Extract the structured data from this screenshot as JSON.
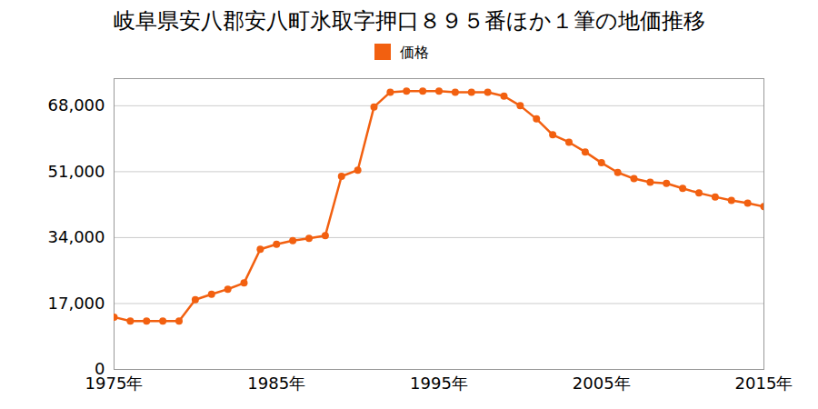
{
  "chart_data": {
    "type": "line",
    "title": "岐阜県安八郡安八町氷取字押口８９５番ほか１筆の地価推移",
    "x": [
      1975,
      1976,
      1977,
      1978,
      1979,
      1980,
      1981,
      1982,
      1983,
      1984,
      1985,
      1986,
      1987,
      1988,
      1989,
      1990,
      1991,
      1992,
      1993,
      1994,
      1995,
      1996,
      1997,
      1998,
      1999,
      2000,
      2001,
      2002,
      2003,
      2004,
      2005,
      2006,
      2007,
      2008,
      2009,
      2010,
      2011,
      2012,
      2013,
      2014,
      2015
    ],
    "series": [
      {
        "name": "価格",
        "color": "#f26010",
        "marker": "circle",
        "values": [
          13500,
          12500,
          12500,
          12500,
          12500,
          18000,
          19400,
          20700,
          22300,
          31000,
          32300,
          33200,
          33800,
          34500,
          49800,
          51400,
          67700,
          71500,
          71800,
          71800,
          71800,
          71500,
          71500,
          71500,
          70500,
          68000,
          64600,
          60500,
          58600,
          56100,
          53300,
          50800,
          49200,
          48300,
          48000,
          46700,
          45500,
          44500,
          43600,
          42900,
          42000
        ]
      }
    ],
    "xlim": [
      1975,
      2015
    ],
    "xticks": [
      {
        "value": 1975,
        "label": "1975年"
      },
      {
        "value": 1985,
        "label": "1985年"
      },
      {
        "value": 1995,
        "label": "1995年"
      },
      {
        "value": 2005,
        "label": "2005年"
      },
      {
        "value": 2015,
        "label": "2015年"
      }
    ],
    "ylim": [
      0,
      75000
    ],
    "yticks": [
      0,
      {
        "value": 17000,
        "label": "17,000"
      },
      {
        "value": 34000,
        "label": "34,000"
      },
      {
        "value": 51000,
        "label": "51,000"
      },
      {
        "value": 68000,
        "label": "68,000"
      }
    ],
    "grid": true,
    "legend": "top"
  }
}
